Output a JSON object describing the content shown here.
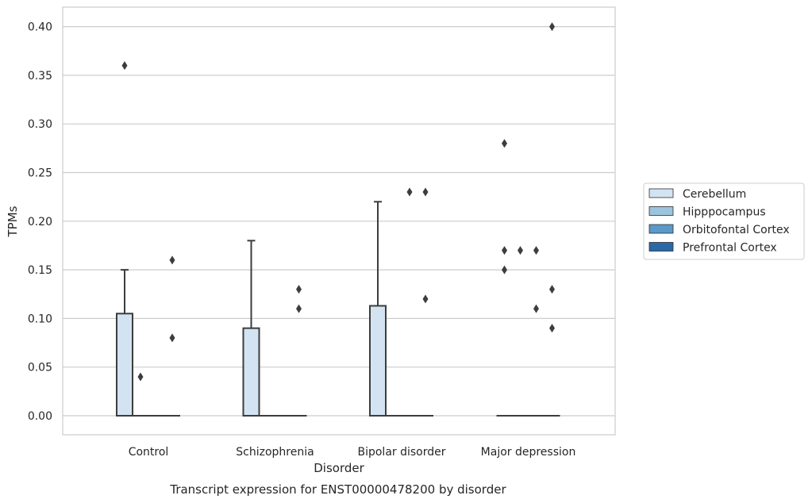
{
  "chart_data": {
    "type": "box",
    "title": "Transcript expression for ENST00000478200 by disorder",
    "xlabel": "Disorder",
    "ylabel": "TPMs",
    "ylim": [
      -0.02,
      0.42
    ],
    "yticks": [
      0.0,
      0.05,
      0.1,
      0.15,
      0.2,
      0.25,
      0.3,
      0.35,
      0.4
    ],
    "ytick_labels": [
      "0.00",
      "0.05",
      "0.10",
      "0.15",
      "0.20",
      "0.25",
      "0.30",
      "0.35",
      "0.40"
    ],
    "grid": "horizontal",
    "legend_position": "right",
    "categories": [
      "Control",
      "Schizophrenia",
      "Bipolar disorder",
      "Major depression"
    ],
    "series": [
      {
        "name": "Cerebellum",
        "color": "#d3e3f2",
        "boxes": [
          {
            "whisker_low": 0.0,
            "q1": 0.0,
            "median": 0.0,
            "q3": 0.105,
            "whisker_high": 0.15,
            "outliers": [
              0.36
            ]
          },
          {
            "whisker_low": 0.0,
            "q1": 0.0,
            "median": 0.0,
            "q3": 0.09,
            "whisker_high": 0.18,
            "outliers": []
          },
          {
            "whisker_low": 0.0,
            "q1": 0.0,
            "median": 0.0,
            "q3": 0.113,
            "whisker_high": 0.22,
            "outliers": []
          },
          {
            "whisker_low": 0.0,
            "q1": 0.0,
            "median": 0.0,
            "q3": 0.0,
            "whisker_high": 0.0,
            "outliers": [
              0.28,
              0.17,
              0.15
            ]
          }
        ]
      },
      {
        "name": "Hipppocampus",
        "color": "#9dc4de",
        "boxes": [
          {
            "whisker_low": 0.0,
            "q1": 0.0,
            "median": 0.0,
            "q3": 0.0,
            "whisker_high": 0.0,
            "outliers": [
              0.04
            ]
          },
          {
            "whisker_low": 0.0,
            "q1": 0.0,
            "median": 0.0,
            "q3": 0.0,
            "whisker_high": 0.0,
            "outliers": []
          },
          {
            "whisker_low": 0.0,
            "q1": 0.0,
            "median": 0.0,
            "q3": 0.0,
            "whisker_high": 0.0,
            "outliers": []
          },
          {
            "whisker_low": 0.0,
            "q1": 0.0,
            "median": 0.0,
            "q3": 0.0,
            "whisker_high": 0.0,
            "outliers": [
              0.17
            ]
          }
        ]
      },
      {
        "name": "Orbitofontal Cortex",
        "color": "#5a9ac8",
        "boxes": [
          {
            "whisker_low": 0.0,
            "q1": 0.0,
            "median": 0.0,
            "q3": 0.0,
            "whisker_high": 0.0,
            "outliers": []
          },
          {
            "whisker_low": 0.0,
            "q1": 0.0,
            "median": 0.0,
            "q3": 0.0,
            "whisker_high": 0.0,
            "outliers": []
          },
          {
            "whisker_low": 0.0,
            "q1": 0.0,
            "median": 0.0,
            "q3": 0.0,
            "whisker_high": 0.0,
            "outliers": [
              0.23
            ]
          },
          {
            "whisker_low": 0.0,
            "q1": 0.0,
            "median": 0.0,
            "q3": 0.0,
            "whisker_high": 0.0,
            "outliers": [
              0.17,
              0.11
            ]
          }
        ]
      },
      {
        "name": "Prefrontal Cortex",
        "color": "#2a69a6",
        "boxes": [
          {
            "whisker_low": 0.0,
            "q1": 0.0,
            "median": 0.0,
            "q3": 0.0,
            "whisker_high": 0.0,
            "outliers": [
              0.16,
              0.08
            ]
          },
          {
            "whisker_low": 0.0,
            "q1": 0.0,
            "median": 0.0,
            "q3": 0.0,
            "whisker_high": 0.0,
            "outliers": [
              0.13,
              0.11
            ]
          },
          {
            "whisker_low": 0.0,
            "q1": 0.0,
            "median": 0.0,
            "q3": 0.0,
            "whisker_high": 0.0,
            "outliers": [
              0.23,
              0.12
            ]
          },
          {
            "whisker_low": 0.0,
            "q1": 0.0,
            "median": 0.0,
            "q3": 0.0,
            "whisker_high": 0.0,
            "outliers": [
              0.4,
              0.13,
              0.09
            ]
          }
        ]
      }
    ]
  }
}
